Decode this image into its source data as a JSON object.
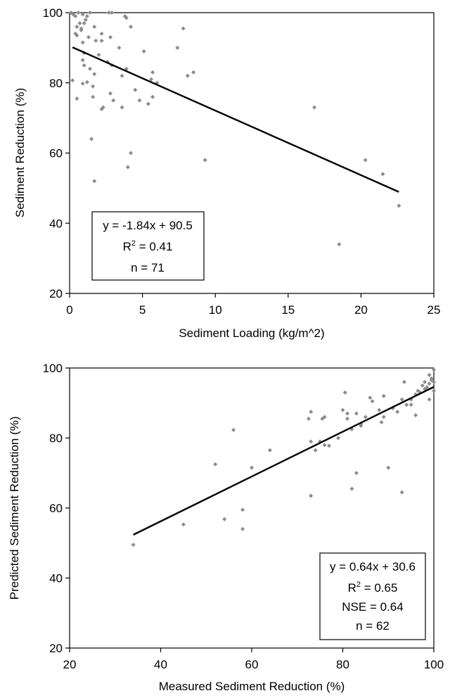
{
  "chart_data": [
    {
      "type": "scatter",
      "xlabel": "Sediment Loading (kg/m^2)",
      "ylabel": "Sediment Reduction (%)",
      "xlim": [
        0,
        25
      ],
      "ylim": [
        20,
        100
      ],
      "xticks": [
        "0",
        "5",
        "10",
        "15",
        "20",
        "25"
      ],
      "yticks": [
        "20",
        "40",
        "60",
        "80",
        "100"
      ],
      "grid": false,
      "marker_color": "#8c8c8c",
      "line_color": "#000000",
      "trendline": {
        "slope": -1.84,
        "intercept": 90.5,
        "x_range": [
          0.2,
          22.6
        ]
      },
      "stats": {
        "equation": "y = -1.84x + 90.5",
        "r2_prefix": "R",
        "r2_sup": "2",
        "r2_value": " = 0.41",
        "n": "n = 71"
      },
      "stats_placement": "bottom-left",
      "points": [
        [
          0.1,
          100
        ],
        [
          0.25,
          99.5
        ],
        [
          0.4,
          99
        ],
        [
          0.6,
          100
        ],
        [
          0.9,
          99.5
        ],
        [
          1.2,
          99
        ],
        [
          1.4,
          100
        ],
        [
          2.7,
          100
        ],
        [
          2.9,
          100
        ],
        [
          3.8,
          99
        ],
        [
          3.9,
          98.5
        ],
        [
          0.5,
          96
        ],
        [
          0.8,
          95.5
        ],
        [
          0.8,
          95
        ],
        [
          1.0,
          97
        ],
        [
          1.7,
          96
        ],
        [
          4.2,
          96
        ],
        [
          7.8,
          95.5
        ],
        [
          0.4,
          94
        ],
        [
          0.5,
          93.5
        ],
        [
          1.3,
          93
        ],
        [
          2.2,
          94
        ],
        [
          2.8,
          93
        ],
        [
          3.4,
          90
        ],
        [
          5.1,
          89
        ],
        [
          7.4,
          90
        ],
        [
          0.9,
          91.5
        ],
        [
          1.8,
          92
        ],
        [
          2.2,
          92
        ],
        [
          1.0,
          88.5
        ],
        [
          2.0,
          88
        ],
        [
          2.6,
          86
        ],
        [
          0.9,
          86.5
        ],
        [
          1.0,
          85
        ],
        [
          1.4,
          84
        ],
        [
          2.9,
          85
        ],
        [
          3.9,
          84
        ],
        [
          1.7,
          82.5
        ],
        [
          3.6,
          82
        ],
        [
          5.6,
          81
        ],
        [
          5.7,
          83
        ],
        [
          8.1,
          82
        ],
        [
          8.5,
          83
        ],
        [
          0.2,
          80.7
        ],
        [
          1.2,
          80.2
        ],
        [
          0.9,
          79.8
        ],
        [
          1.6,
          79
        ],
        [
          2.8,
          77
        ],
        [
          1.6,
          76
        ],
        [
          0.5,
          75.5
        ],
        [
          4.8,
          75
        ],
        [
          5.4,
          74
        ],
        [
          5.7,
          76
        ],
        [
          2.2,
          72.5
        ],
        [
          2.3,
          73
        ],
        [
          3.6,
          73
        ],
        [
          1.5,
          64
        ],
        [
          4.2,
          60
        ],
        [
          4.0,
          56
        ],
        [
          1.7,
          52
        ],
        [
          9.3,
          58
        ],
        [
          16.8,
          73
        ],
        [
          20.3,
          58
        ],
        [
          21.5,
          54
        ],
        [
          22.6,
          45
        ],
        [
          18.5,
          34
        ],
        [
          4.5,
          78
        ],
        [
          6.0,
          80
        ],
        [
          3.0,
          75
        ],
        [
          0.7,
          97
        ],
        [
          1.1,
          98
        ]
      ]
    },
    {
      "type": "scatter",
      "xlabel": "Measured Sediment Reduction (%)",
      "ylabel": "Predicted Sediment Reduction (%)",
      "xlim": [
        20,
        100
      ],
      "ylim": [
        20,
        100
      ],
      "xticks": [
        "20",
        "40",
        "60",
        "80",
        "100"
      ],
      "yticks": [
        "20",
        "40",
        "60",
        "80",
        "100"
      ],
      "grid": false,
      "marker_color": "#8c8c8c",
      "line_color": "#000000",
      "trendline": {
        "slope": 0.64,
        "intercept": 30.6,
        "x_range": [
          34,
          100
        ]
      },
      "stats": {
        "equation": "y = 0.64x + 30.6",
        "r2_prefix": "R",
        "r2_sup": "2",
        "r2_value": " = 0.65",
        "nse": "NSE = 0.64",
        "n": "n = 62"
      },
      "stats_placement": "bottom-right",
      "points": [
        [
          34,
          49.5
        ],
        [
          45,
          55.3
        ],
        [
          52,
          72.5
        ],
        [
          54,
          56.8
        ],
        [
          56,
          82.3
        ],
        [
          58,
          59.5
        ],
        [
          58,
          54
        ],
        [
          60,
          71.5
        ],
        [
          64,
          76.5
        ],
        [
          72.5,
          85.5
        ],
        [
          73,
          87.5
        ],
        [
          73,
          79
        ],
        [
          73,
          63.5
        ],
        [
          74,
          76.5
        ],
        [
          75,
          79
        ],
        [
          75.5,
          85.5
        ],
        [
          76,
          86
        ],
        [
          76,
          78
        ],
        [
          77,
          77.8
        ],
        [
          80,
          88
        ],
        [
          80.5,
          93
        ],
        [
          81,
          87
        ],
        [
          81,
          85.5
        ],
        [
          82,
          82.5
        ],
        [
          82,
          65.5
        ],
        [
          83,
          87
        ],
        [
          83,
          70
        ],
        [
          84,
          84
        ],
        [
          84,
          83.5
        ],
        [
          85,
          86
        ],
        [
          86,
          91.5
        ],
        [
          86.5,
          90.5
        ],
        [
          88,
          88
        ],
        [
          88.5,
          84.5
        ],
        [
          89,
          86
        ],
        [
          90,
          71.5
        ],
        [
          91,
          88.5
        ],
        [
          92,
          87.5
        ],
        [
          93,
          91
        ],
        [
          93,
          64.5
        ],
        [
          93.5,
          96
        ],
        [
          94,
          89.5
        ],
        [
          95,
          91
        ],
        [
          95,
          89.5
        ],
        [
          96,
          92.5
        ],
        [
          96,
          86.5
        ],
        [
          96.5,
          93.5
        ],
        [
          97,
          93
        ],
        [
          98,
          94
        ],
        [
          98.5,
          94.5
        ],
        [
          99,
          95.5
        ],
        [
          99,
          91
        ],
        [
          99.5,
          97
        ],
        [
          99.5,
          96.5
        ],
        [
          100,
          99.5
        ],
        [
          100,
          96
        ],
        [
          100,
          93.5
        ],
        [
          99,
          98
        ],
        [
          98,
          96
        ],
        [
          97.5,
          95
        ],
        [
          89,
          92
        ],
        [
          79,
          80
        ]
      ]
    }
  ]
}
